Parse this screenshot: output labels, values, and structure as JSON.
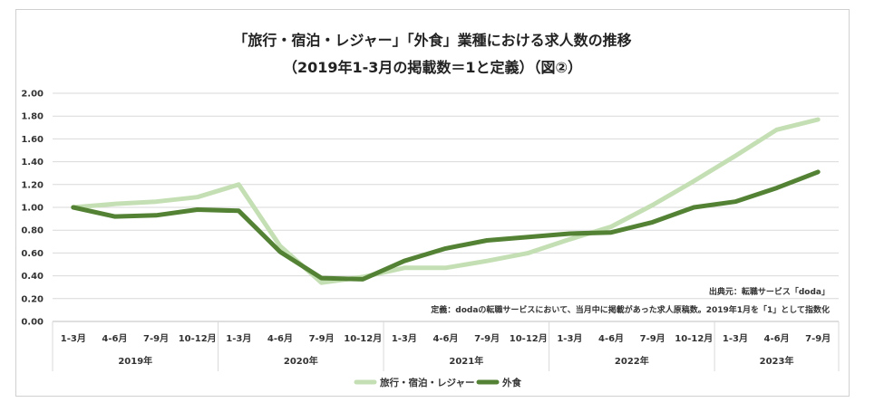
{
  "chart_data": {
    "type": "line",
    "title": "「旅行・宿泊・レジャー」「外食」業種における求人数の推移",
    "subtitle": "（2019年1-3月の掲載数＝1と定義）（図②）",
    "categories": [
      "1-3月",
      "4-6月",
      "7-9月",
      "10-12月",
      "1-3月",
      "4-6月",
      "7-9月",
      "10-12月",
      "1-3月",
      "4-6月",
      "7-9月",
      "10-12月",
      "1-3月",
      "4-6月",
      "7-9月",
      "10-12月",
      "1-3月",
      "4-6月",
      "7-9月"
    ],
    "years": [
      {
        "label": "2019年",
        "count": 4
      },
      {
        "label": "2020年",
        "count": 4
      },
      {
        "label": "2021年",
        "count": 4
      },
      {
        "label": "2022年",
        "count": 4
      },
      {
        "label": "2023年",
        "count": 3
      }
    ],
    "ylim": [
      0,
      2
    ],
    "yticks": [
      "0.00",
      "0.20",
      "0.40",
      "0.60",
      "0.80",
      "1.00",
      "1.20",
      "1.40",
      "1.60",
      "1.80",
      "2.00"
    ],
    "series": [
      {
        "name": "旅行・宿泊・レジャー",
        "color": "#c5dfb4",
        "values": [
          1.0,
          1.03,
          1.05,
          1.09,
          1.2,
          0.66,
          0.34,
          0.39,
          0.47,
          0.47,
          0.53,
          0.6,
          0.72,
          0.83,
          1.02,
          1.23,
          1.45,
          1.68,
          1.77
        ]
      },
      {
        "name": "外食",
        "color": "#548235",
        "values": [
          1.0,
          0.92,
          0.93,
          0.98,
          0.97,
          0.61,
          0.38,
          0.37,
          0.53,
          0.64,
          0.71,
          0.74,
          0.77,
          0.78,
          0.87,
          1.0,
          1.05,
          1.17,
          1.31
        ]
      }
    ],
    "annotations": {
      "source": "出典元：転職サービス「doda」",
      "definition": "定義：dodaの転職サービスにおいて、当月中に掲載があった求人原稿数。2019年1月を「1」として指数化"
    }
  }
}
